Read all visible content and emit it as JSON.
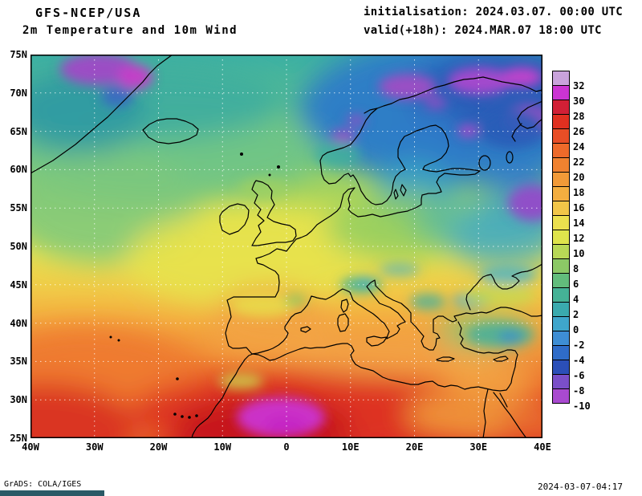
{
  "header": {
    "model": "GFS-NCEP/USA",
    "product": "2m Temperature and 10m Wind",
    "init": "initialisation: 2024.03.07. 00:00 UTC",
    "valid": "valid(+18h): 2024.MAR.07 18:00 UTC"
  },
  "footer": {
    "credit": "GrADS: COLA/IGES",
    "generated": "2024-03-07-04:17"
  },
  "chart_data": {
    "type": "heatmap",
    "title": "2m Temperature and 10m Wind",
    "model": "GFS-NCEP/USA",
    "region": "Europe / North Atlantic / North Africa",
    "x_axis": {
      "label": "longitude",
      "ticks": [
        "40W",
        "30W",
        "20W",
        "10W",
        "0",
        "10E",
        "20E",
        "30E",
        "40E"
      ],
      "range_deg": [
        -40,
        40
      ]
    },
    "y_axis": {
      "label": "latitude",
      "ticks": [
        "75N",
        "70N",
        "65N",
        "60N",
        "55N",
        "50N",
        "45N",
        "40N",
        "35N",
        "30N",
        "25N"
      ],
      "range_deg": [
        75,
        25
      ]
    },
    "grid": true,
    "colorbar": {
      "position": "right",
      "unit": "degC",
      "levels": [
        "32",
        "30",
        "28",
        "26",
        "24",
        "22",
        "20",
        "18",
        "16",
        "14",
        "12",
        "10",
        "8",
        "6",
        "4",
        "2",
        "0",
        "-2",
        "-4",
        "-6",
        "-8",
        "-10"
      ],
      "colors": [
        "#c9a3dc",
        "#cb34d2",
        "#d12036",
        "#e03020",
        "#e84e26",
        "#ee6a2a",
        "#f08230",
        "#f29a38",
        "#f4ae40",
        "#f2c648",
        "#ece04e",
        "#dfe44c",
        "#b8d856",
        "#8cc966",
        "#62bd7c",
        "#45b296",
        "#3aaaae",
        "#3fa6cc",
        "#3e8ed4",
        "#2f6cc8",
        "#2b4fb8",
        "#7a4fc8",
        "#a94ad0"
      ]
    },
    "field_estimates_degC": [
      {
        "lon": "20W",
        "lat": "70N",
        "t": 4
      },
      {
        "lon": "20W",
        "lat": "60N",
        "t": 8
      },
      {
        "lon": "20W",
        "lat": "50N",
        "t": 12
      },
      {
        "lon": "20W",
        "lat": "40N",
        "t": 16
      },
      {
        "lon": "20W",
        "lat": "30N",
        "t": 22
      },
      {
        "lon": "0",
        "lat": "70N",
        "t": 2
      },
      {
        "lon": "0",
        "lat": "60N",
        "t": 8
      },
      {
        "lon": "0",
        "lat": "50N",
        "t": 11
      },
      {
        "lon": "0",
        "lat": "40N",
        "t": 15
      },
      {
        "lon": "0",
        "lat": "30N",
        "t": 26
      },
      {
        "lon": "10E",
        "lat": "28N",
        "t": 31
      },
      {
        "lon": "20E",
        "lat": "70N",
        "t": -6
      },
      {
        "lon": "20E",
        "lat": "60N",
        "t": 0
      },
      {
        "lon": "20E",
        "lat": "50N",
        "t": 7
      },
      {
        "lon": "20E",
        "lat": "40N",
        "t": 14
      },
      {
        "lon": "20E",
        "lat": "30N",
        "t": 24
      },
      {
        "lon": "40E",
        "lat": "70N",
        "t": -10
      },
      {
        "lon": "40E",
        "lat": "60N",
        "t": -4
      },
      {
        "lon": "40E",
        "lat": "50N",
        "t": 4
      },
      {
        "lon": "40E",
        "lat": "40N",
        "t": 10
      },
      {
        "lon": "40E",
        "lat": "30N",
        "t": 20
      }
    ]
  }
}
